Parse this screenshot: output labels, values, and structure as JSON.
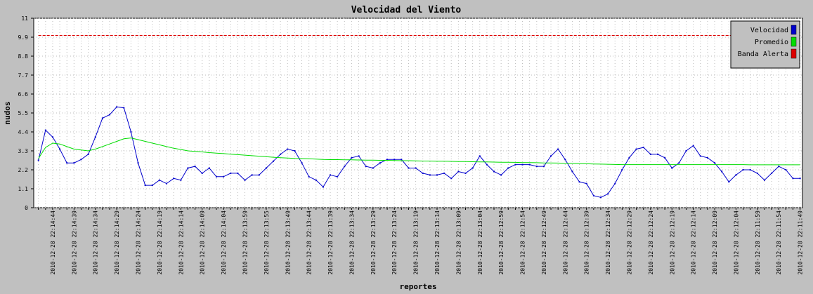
{
  "chart_data": {
    "type": "line",
    "title": "Velocidad del Viento",
    "y_label": "nudos",
    "x_label": "reportes",
    "categories": [
      null,
      null,
      "2010-12-28 22:14:44",
      null,
      null,
      "2010-12-28 22:14:39",
      null,
      null,
      "2010-12-28 22:14:34",
      null,
      null,
      "2010-12-28 22:14:29",
      null,
      null,
      "2010-12-28 22:14:24",
      null,
      null,
      "2010-12-28 22:14:19",
      null,
      null,
      "2010-12-28 22:14:14",
      null,
      null,
      "2010-12-28 22:14:09",
      null,
      null,
      "2010-12-28 22:14:04",
      null,
      null,
      "2010-12-28 22:13:59",
      null,
      null,
      "2010-12-28 22:13:55",
      null,
      null,
      "2010-12-28 22:13:49",
      null,
      null,
      "2010-12-28 22:13:44",
      null,
      null,
      "2010-12-28 22:13:39",
      null,
      null,
      "2010-12-28 22:13:34",
      null,
      null,
      "2010-12-28 22:13:29",
      null,
      null,
      "2010-12-28 22:13:24",
      null,
      null,
      "2010-12-28 22:13:19",
      null,
      null,
      "2010-12-28 22:13:14",
      null,
      null,
      "2010-12-28 22:13:09",
      null,
      null,
      "2010-12-28 22:13:04",
      null,
      null,
      "2010-12-28 22:12:59",
      null,
      null,
      "2010-12-28 22:12:54",
      null,
      null,
      "2010-12-28 22:12:49",
      null,
      null,
      "2010-12-28 22:12:44",
      null,
      null,
      "2010-12-28 22:12:39",
      null,
      null,
      "2010-12-28 22:12:34",
      null,
      null,
      "2010-12-28 22:12:29",
      null,
      null,
      "2010-12-28 22:12:24",
      null,
      null,
      "2010-12-28 22:12:19",
      null,
      null,
      "2010-12-28 22:12:14",
      null,
      null,
      "2010-12-28 22:12:09",
      null,
      null,
      "2010-12-28 22:12:04",
      null,
      null,
      "2010-12-28 22:11:59",
      null,
      null,
      "2010-12-28 22:11:54",
      null,
      null,
      "2010-12-28 22:11:49"
    ],
    "series": [
      {
        "name": "Velocidad",
        "color": "#0000cc",
        "markers": true,
        "dashed": false,
        "values": [
          2.75,
          4.5,
          4.1,
          3.4,
          2.6,
          2.6,
          2.8,
          3.1,
          4.1,
          5.2,
          5.4,
          5.85,
          5.8,
          4.4,
          2.6,
          1.3,
          1.3,
          1.6,
          1.4,
          1.7,
          1.6,
          2.3,
          2.4,
          2.0,
          2.3,
          1.8,
          1.8,
          2.0,
          2.0,
          1.6,
          1.9,
          1.9,
          2.3,
          2.7,
          3.1,
          3.4,
          3.3,
          2.6,
          1.8,
          1.6,
          1.2,
          1.9,
          1.8,
          2.4,
          2.9,
          3.0,
          2.4,
          2.3,
          2.6,
          2.8,
          2.8,
          2.8,
          2.3,
          2.3,
          2.0,
          1.9,
          1.9,
          2.0,
          1.7,
          2.1,
          2.0,
          2.3,
          3.0,
          2.5,
          2.1,
          1.9,
          2.3,
          2.5,
          2.5,
          2.5,
          2.4,
          2.4,
          3.0,
          3.4,
          2.8,
          2.1,
          1.5,
          1.4,
          0.7,
          0.6,
          0.8,
          1.4,
          2.2,
          2.9,
          3.4,
          3.5,
          3.1,
          3.1,
          2.9,
          2.3,
          2.6,
          3.3,
          3.6,
          3.0,
          2.9,
          2.6,
          2.1,
          1.5,
          1.9,
          2.2,
          2.2,
          2.0,
          1.6,
          2.0,
          2.4,
          2.2,
          1.7,
          1.7
        ]
      },
      {
        "name": "Promedio",
        "color": "#00dd00",
        "markers": false,
        "dashed": false,
        "values": [
          2.85,
          3.5,
          3.75,
          3.7,
          3.55,
          3.4,
          3.35,
          3.3,
          3.4,
          3.55,
          3.7,
          3.85,
          4.0,
          4.05,
          3.95,
          3.85,
          3.75,
          3.65,
          3.55,
          3.45,
          3.38,
          3.3,
          3.27,
          3.24,
          3.2,
          3.17,
          3.14,
          3.11,
          3.08,
          3.05,
          3.02,
          2.99,
          2.96,
          2.93,
          2.9,
          2.88,
          2.86,
          2.85,
          2.84,
          2.82,
          2.8,
          2.79,
          2.79,
          2.78,
          2.78,
          2.77,
          2.76,
          2.76,
          2.75,
          2.75,
          2.74,
          2.73,
          2.73,
          2.72,
          2.71,
          2.71,
          2.7,
          2.7,
          2.69,
          2.68,
          2.68,
          2.67,
          2.66,
          2.66,
          2.65,
          2.64,
          2.64,
          2.63,
          2.62,
          2.62,
          2.61,
          2.6,
          2.6,
          2.59,
          2.58,
          2.57,
          2.56,
          2.55,
          2.54,
          2.53,
          2.52,
          2.51,
          2.5,
          2.5,
          2.5,
          2.5,
          2.5,
          2.5,
          2.5,
          2.5,
          2.5,
          2.5,
          2.5,
          2.5,
          2.5,
          2.5,
          2.5,
          2.5,
          2.5,
          2.5,
          2.49,
          2.49,
          2.49,
          2.49,
          2.49,
          2.49,
          2.49,
          2.49
        ]
      },
      {
        "name": "Banda Alerta",
        "color": "#dd0000",
        "markers": false,
        "dashed": true,
        "values": [
          10,
          10,
          10,
          10,
          10,
          10,
          10,
          10,
          10,
          10,
          10,
          10,
          10,
          10,
          10,
          10,
          10,
          10,
          10,
          10,
          10,
          10,
          10,
          10,
          10,
          10,
          10,
          10,
          10,
          10,
          10,
          10,
          10,
          10,
          10,
          10,
          10,
          10,
          10,
          10,
          10,
          10,
          10,
          10,
          10,
          10,
          10,
          10,
          10,
          10,
          10,
          10,
          10,
          10,
          10,
          10,
          10,
          10,
          10,
          10,
          10,
          10,
          10,
          10,
          10,
          10,
          10,
          10,
          10,
          10,
          10,
          10,
          10,
          10,
          10,
          10,
          10,
          10,
          10,
          10,
          10,
          10,
          10,
          10,
          10,
          10,
          10,
          10,
          10,
          10,
          10,
          10,
          10,
          10,
          10,
          10,
          10,
          10,
          10,
          10,
          10,
          10,
          10,
          10,
          10,
          10,
          10,
          10
        ]
      }
    ],
    "ylim": [
      0,
      11
    ],
    "yticks": [
      0,
      1.1,
      2.2,
      3.3,
      4.4,
      5.5,
      6.6,
      7.7,
      8.8,
      9.9,
      11
    ],
    "grid": true,
    "legend": "top-right"
  }
}
